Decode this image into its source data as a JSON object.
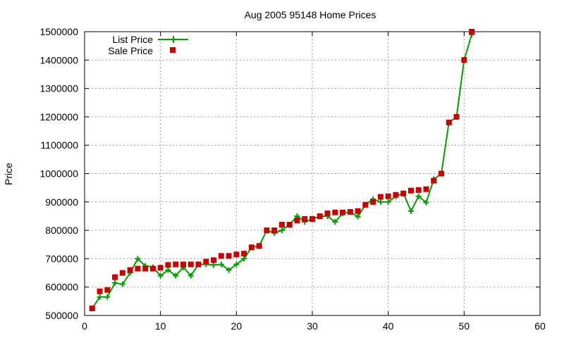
{
  "chart_data": {
    "type": "line",
    "title": "Aug 2005 95148 Home Prices",
    "xlabel": "",
    "ylabel": "Price",
    "xlim": [
      0,
      60
    ],
    "ylim": [
      500000,
      1500000
    ],
    "xticks": [
      0,
      10,
      20,
      30,
      40,
      50,
      60
    ],
    "yticks": [
      500000,
      600000,
      700000,
      800000,
      900000,
      1000000,
      1100000,
      1200000,
      1300000,
      1400000,
      1500000
    ],
    "grid": true,
    "legend_position": "top-left",
    "series": [
      {
        "name": "List Price",
        "style": "line-plus",
        "color": "#00a000",
        "x": [
          1,
          2,
          3,
          4,
          5,
          6,
          7,
          8,
          9,
          10,
          11,
          12,
          13,
          14,
          15,
          16,
          17,
          18,
          19,
          20,
          21,
          22,
          23,
          24,
          25,
          26,
          27,
          28,
          29,
          30,
          31,
          32,
          33,
          34,
          35,
          36,
          37,
          38,
          39,
          40,
          41,
          42,
          43,
          44,
          45,
          46,
          47,
          48,
          49,
          50,
          51
        ],
        "y": [
          525000,
          565000,
          565000,
          615000,
          610000,
          650000,
          700000,
          675000,
          670000,
          640000,
          660000,
          640000,
          670000,
          640000,
          680000,
          680000,
          678000,
          680000,
          660000,
          680000,
          700000,
          740000,
          745000,
          800000,
          790000,
          800000,
          820000,
          850000,
          830000,
          840000,
          850000,
          850000,
          830000,
          860000,
          865000,
          848000,
          890000,
          910000,
          900000,
          900000,
          920000,
          930000,
          868000,
          920000,
          898000,
          980000,
          1000000,
          1180000,
          1200000,
          1400000,
          1490000
        ]
      },
      {
        "name": "Sale Price",
        "style": "square-points",
        "color": "#cc0000",
        "x": [
          1,
          2,
          3,
          4,
          5,
          6,
          7,
          8,
          9,
          10,
          11,
          12,
          13,
          14,
          15,
          16,
          17,
          18,
          19,
          20,
          21,
          22,
          23,
          24,
          25,
          26,
          27,
          28,
          29,
          30,
          31,
          32,
          33,
          34,
          35,
          36,
          37,
          38,
          39,
          40,
          41,
          42,
          43,
          44,
          45,
          46,
          47,
          48,
          49,
          50,
          51
        ],
        "y": [
          525000,
          585000,
          590000,
          635000,
          650000,
          660000,
          665000,
          665000,
          665000,
          668000,
          678000,
          680000,
          680000,
          680000,
          680000,
          690000,
          695000,
          710000,
          710000,
          715000,
          718000,
          740000,
          745000,
          800000,
          800000,
          820000,
          820000,
          835000,
          840000,
          840000,
          850000,
          860000,
          863000,
          863000,
          865000,
          868000,
          890000,
          900000,
          918000,
          920000,
          925000,
          930000,
          940000,
          942000,
          945000,
          975000,
          1000000,
          1180000,
          1200000,
          1400000,
          1500000
        ]
      }
    ]
  }
}
